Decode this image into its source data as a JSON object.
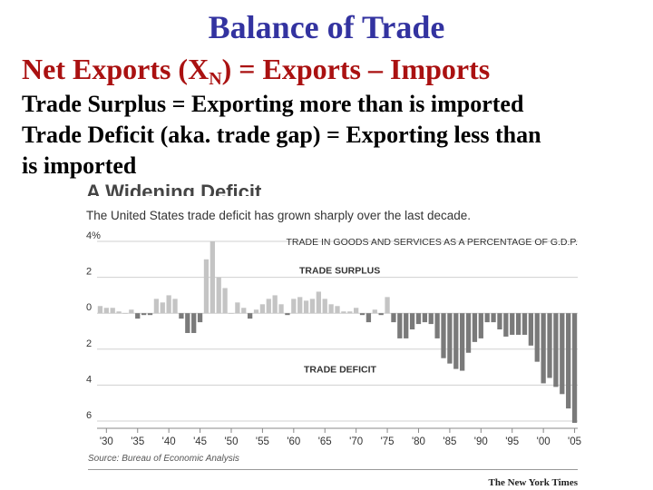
{
  "slide": {
    "title": "Balance of Trade",
    "heading_main": "Net Exports (X",
    "heading_sub": "N",
    "heading_rest": ") = Exports – Imports",
    "bullet1": "Trade Surplus = Exporting more than is imported",
    "bullet2": "Trade Deficit (aka. trade gap) = Exporting less than",
    "bullet3": "is imported"
  },
  "chart_data": {
    "type": "bar",
    "title": "A Widening Deficit",
    "subtitle": "The United States trade deficit has grown sharply over the last decade.",
    "ylabel": "TRADE IN GOODS AND SERVICES AS A PERCENTAGE OF G.D.P.",
    "surplus_label": "TRADE SURPLUS",
    "deficit_label": "TRADE DEFICIT",
    "source": "Source: Bureau of Economic Analysis",
    "credit": "The New York Times",
    "ylim": [
      -6,
      4
    ],
    "y_ticks": [
      {
        "value": 4,
        "label": "4%"
      },
      {
        "value": 2,
        "label": "2"
      },
      {
        "value": 0,
        "label": "0"
      },
      {
        "value": -2,
        "label": "2"
      },
      {
        "value": -4,
        "label": "4"
      },
      {
        "value": -6,
        "label": "6"
      }
    ],
    "x_ticks": [
      {
        "year": 1930,
        "label": "'30"
      },
      {
        "year": 1935,
        "label": "'35"
      },
      {
        "year": 1940,
        "label": "'40"
      },
      {
        "year": 1945,
        "label": "'45"
      },
      {
        "year": 1950,
        "label": "'50"
      },
      {
        "year": 1955,
        "label": "'55"
      },
      {
        "year": 1960,
        "label": "'60"
      },
      {
        "year": 1965,
        "label": "'65"
      },
      {
        "year": 1970,
        "label": "'70"
      },
      {
        "year": 1975,
        "label": "'75"
      },
      {
        "year": 1980,
        "label": "'80"
      },
      {
        "year": 1985,
        "label": "'85"
      },
      {
        "year": 1990,
        "label": "'90"
      },
      {
        "year": 1995,
        "label": "'95"
      },
      {
        "year": 2000,
        "label": "'00"
      },
      {
        "year": 2005,
        "label": "'05"
      }
    ],
    "colors": {
      "surplus": "#c4c4c4",
      "deficit": "#7a7a7a",
      "axis": "#888888",
      "grid": "#d0d0d0"
    },
    "years": [
      1929,
      1930,
      1931,
      1932,
      1933,
      1934,
      1935,
      1936,
      1937,
      1938,
      1939,
      1940,
      1941,
      1942,
      1943,
      1944,
      1945,
      1946,
      1947,
      1948,
      1949,
      1950,
      1951,
      1952,
      1953,
      1954,
      1955,
      1956,
      1957,
      1958,
      1959,
      1960,
      1961,
      1962,
      1963,
      1964,
      1965,
      1966,
      1967,
      1968,
      1969,
      1970,
      1971,
      1972,
      1973,
      1974,
      1975,
      1976,
      1977,
      1978,
      1979,
      1980,
      1981,
      1982,
      1983,
      1984,
      1985,
      1986,
      1987,
      1988,
      1989,
      1990,
      1991,
      1992,
      1993,
      1994,
      1995,
      1996,
      1997,
      1998,
      1999,
      2000,
      2001,
      2002,
      2003,
      2004,
      2005
    ],
    "values": [
      0.4,
      0.3,
      0.3,
      0.1,
      0.0,
      0.2,
      -0.3,
      -0.1,
      -0.1,
      0.8,
      0.6,
      1.0,
      0.8,
      -0.3,
      -1.1,
      -1.1,
      -0.5,
      3.0,
      4.0,
      2.0,
      1.4,
      0.0,
      0.6,
      0.3,
      -0.3,
      0.2,
      0.5,
      0.8,
      1.0,
      0.5,
      -0.1,
      0.8,
      0.9,
      0.7,
      0.8,
      1.2,
      0.8,
      0.5,
      0.4,
      0.1,
      0.1,
      0.3,
      -0.1,
      -0.5,
      0.2,
      -0.1,
      0.9,
      -0.5,
      -1.4,
      -1.4,
      -0.9,
      -0.6,
      -0.5,
      -0.6,
      -1.4,
      -2.5,
      -2.8,
      -3.1,
      -3.2,
      -2.2,
      -1.6,
      -1.4,
      -0.5,
      -0.5,
      -0.9,
      -1.3,
      -1.2,
      -1.2,
      -1.2,
      -1.8,
      -2.7,
      -3.9,
      -3.6,
      -4.1,
      -4.5,
      -5.3,
      -6.1
    ]
  }
}
